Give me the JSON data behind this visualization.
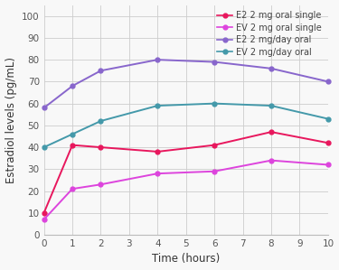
{
  "title": "",
  "xlabel": "Time (hours)",
  "ylabel": "Estradiol levels (pg/mL)",
  "xlim": [
    0,
    10
  ],
  "ylim": [
    0,
    105
  ],
  "yticks": [
    0,
    10,
    20,
    30,
    40,
    50,
    60,
    70,
    80,
    90,
    100
  ],
  "xticks": [
    0,
    1,
    2,
    3,
    4,
    5,
    6,
    7,
    8,
    9,
    10
  ],
  "series": [
    {
      "label": "E2 2 mg oral single",
      "x": [
        0,
        1,
        2,
        4,
        6,
        8,
        10
      ],
      "y": [
        10,
        41,
        40,
        38,
        41,
        47,
        42
      ],
      "color": "#e8175d",
      "marker": "o",
      "linewidth": 1.4,
      "markersize": 3.5
    },
    {
      "label": "EV 2 mg oral single",
      "x": [
        0,
        1,
        2,
        4,
        6,
        8,
        10
      ],
      "y": [
        7,
        21,
        23,
        28,
        29,
        34,
        32
      ],
      "color": "#dd44dd",
      "marker": "o",
      "linewidth": 1.4,
      "markersize": 3.5
    },
    {
      "label": "E2 2 mg/day oral",
      "x": [
        0,
        1,
        2,
        4,
        6,
        8,
        10
      ],
      "y": [
        58,
        68,
        75,
        80,
        79,
        76,
        70
      ],
      "color": "#8866cc",
      "marker": "o",
      "linewidth": 1.4,
      "markersize": 3.5
    },
    {
      "label": "EV 2 mg/day oral",
      "x": [
        0,
        1,
        2,
        4,
        6,
        8,
        10
      ],
      "y": [
        40,
        46,
        52,
        59,
        60,
        59,
        53
      ],
      "color": "#4499aa",
      "marker": "o",
      "linewidth": 1.4,
      "markersize": 3.5
    }
  ],
  "background_color": "#f8f8f8",
  "grid_color": "#cccccc",
  "legend_fontsize": 7.0,
  "axis_label_fontsize": 8.5,
  "tick_fontsize": 7.5
}
